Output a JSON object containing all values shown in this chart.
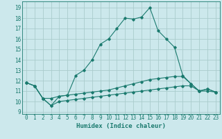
{
  "xlabel": "Humidex (Indice chaleur)",
  "bg_color": "#cce8ec",
  "grid_color": "#aacccc",
  "line_color": "#1a7a6e",
  "xlim": [
    -0.5,
    23.5
  ],
  "ylim": [
    8.8,
    19.6
  ],
  "yticks": [
    9,
    10,
    11,
    12,
    13,
    14,
    15,
    16,
    17,
    18,
    19
  ],
  "xticks": [
    0,
    1,
    2,
    3,
    4,
    5,
    6,
    7,
    8,
    9,
    10,
    11,
    12,
    13,
    14,
    15,
    16,
    17,
    18,
    19,
    20,
    21,
    22,
    23
  ],
  "line1_x": [
    0,
    1,
    2,
    3,
    4,
    5,
    6,
    7,
    8,
    9,
    10,
    11,
    12,
    13,
    14,
    15,
    16,
    17,
    18,
    19,
    20,
    21,
    22,
    23
  ],
  "line1_y": [
    11.8,
    11.5,
    10.3,
    9.6,
    10.5,
    10.6,
    12.5,
    13.0,
    14.0,
    15.5,
    16.0,
    17.0,
    18.0,
    17.9,
    18.1,
    19.0,
    16.8,
    16.0,
    15.2,
    12.5,
    11.7,
    11.0,
    11.2,
    10.9
  ],
  "line2_x": [
    0,
    1,
    2,
    3,
    4,
    5,
    6,
    7,
    8,
    9,
    10,
    11,
    12,
    13,
    14,
    15,
    16,
    17,
    18,
    19,
    20,
    21,
    22,
    23
  ],
  "line2_y": [
    11.8,
    11.5,
    10.3,
    10.3,
    10.5,
    10.6,
    10.7,
    10.8,
    10.9,
    11.0,
    11.1,
    11.3,
    11.5,
    11.7,
    11.9,
    12.1,
    12.2,
    12.3,
    12.4,
    12.4,
    11.7,
    11.0,
    11.2,
    10.9
  ],
  "line3_x": [
    0,
    1,
    2,
    3,
    4,
    5,
    6,
    7,
    8,
    9,
    10,
    11,
    12,
    13,
    14,
    15,
    16,
    17,
    18,
    19,
    20,
    21,
    22,
    23
  ],
  "line3_y": [
    11.8,
    11.5,
    10.3,
    9.6,
    10.0,
    10.1,
    10.2,
    10.3,
    10.4,
    10.5,
    10.6,
    10.7,
    10.8,
    10.9,
    11.0,
    11.1,
    11.2,
    11.3,
    11.4,
    11.5,
    11.5,
    11.0,
    11.0,
    10.9
  ],
  "tick_fontsize": 5.5,
  "xlabel_fontsize": 6.5,
  "marker": "D",
  "markersize": 1.8,
  "linewidth": 0.8
}
